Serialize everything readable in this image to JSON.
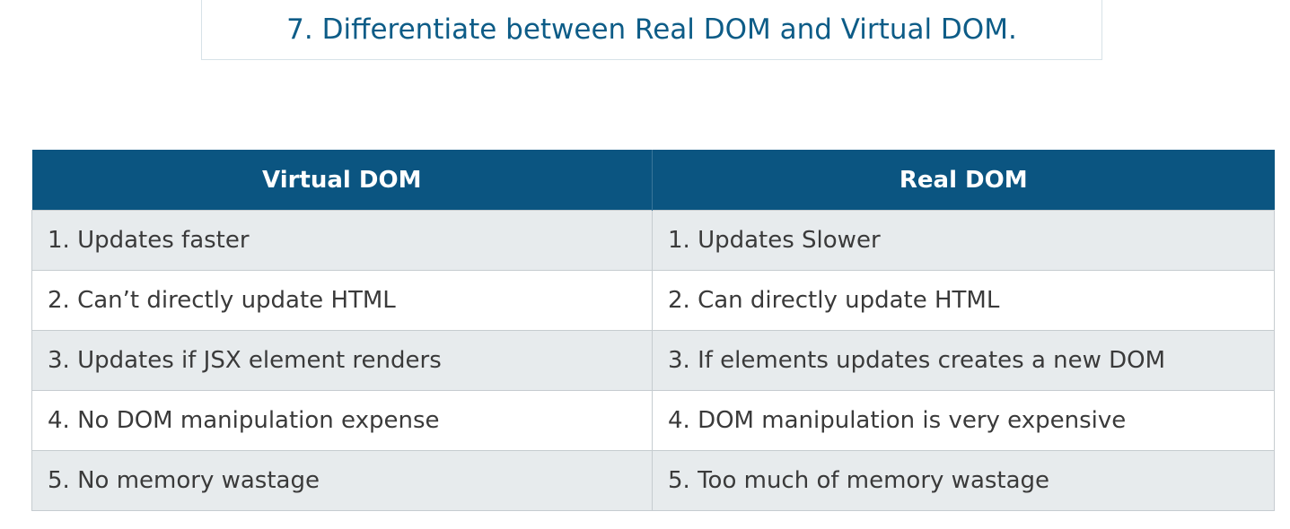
{
  "title": "7. Differentiate between Real DOM and Virtual DOM.",
  "table": {
    "headers": [
      "Virtual DOM",
      "Real DOM"
    ],
    "rows": [
      [
        "1. Updates faster",
        "1. Updates Slower"
      ],
      [
        "2. Can’t directly update HTML",
        "2. Can directly update HTML"
      ],
      [
        "3. Updates if JSX element renders",
        "3. If elements updates creates a new DOM"
      ],
      [
        "4. No DOM manipulation expense",
        "4. DOM manipulation is very expensive"
      ],
      [
        "5. No memory wastage",
        "5. Too much of memory wastage"
      ]
    ]
  },
  "colors": {
    "title_text": "#0d5c87",
    "header_bg": "#0b5581",
    "row_shaded": "#e7ebed",
    "row_plain": "#ffffff"
  }
}
